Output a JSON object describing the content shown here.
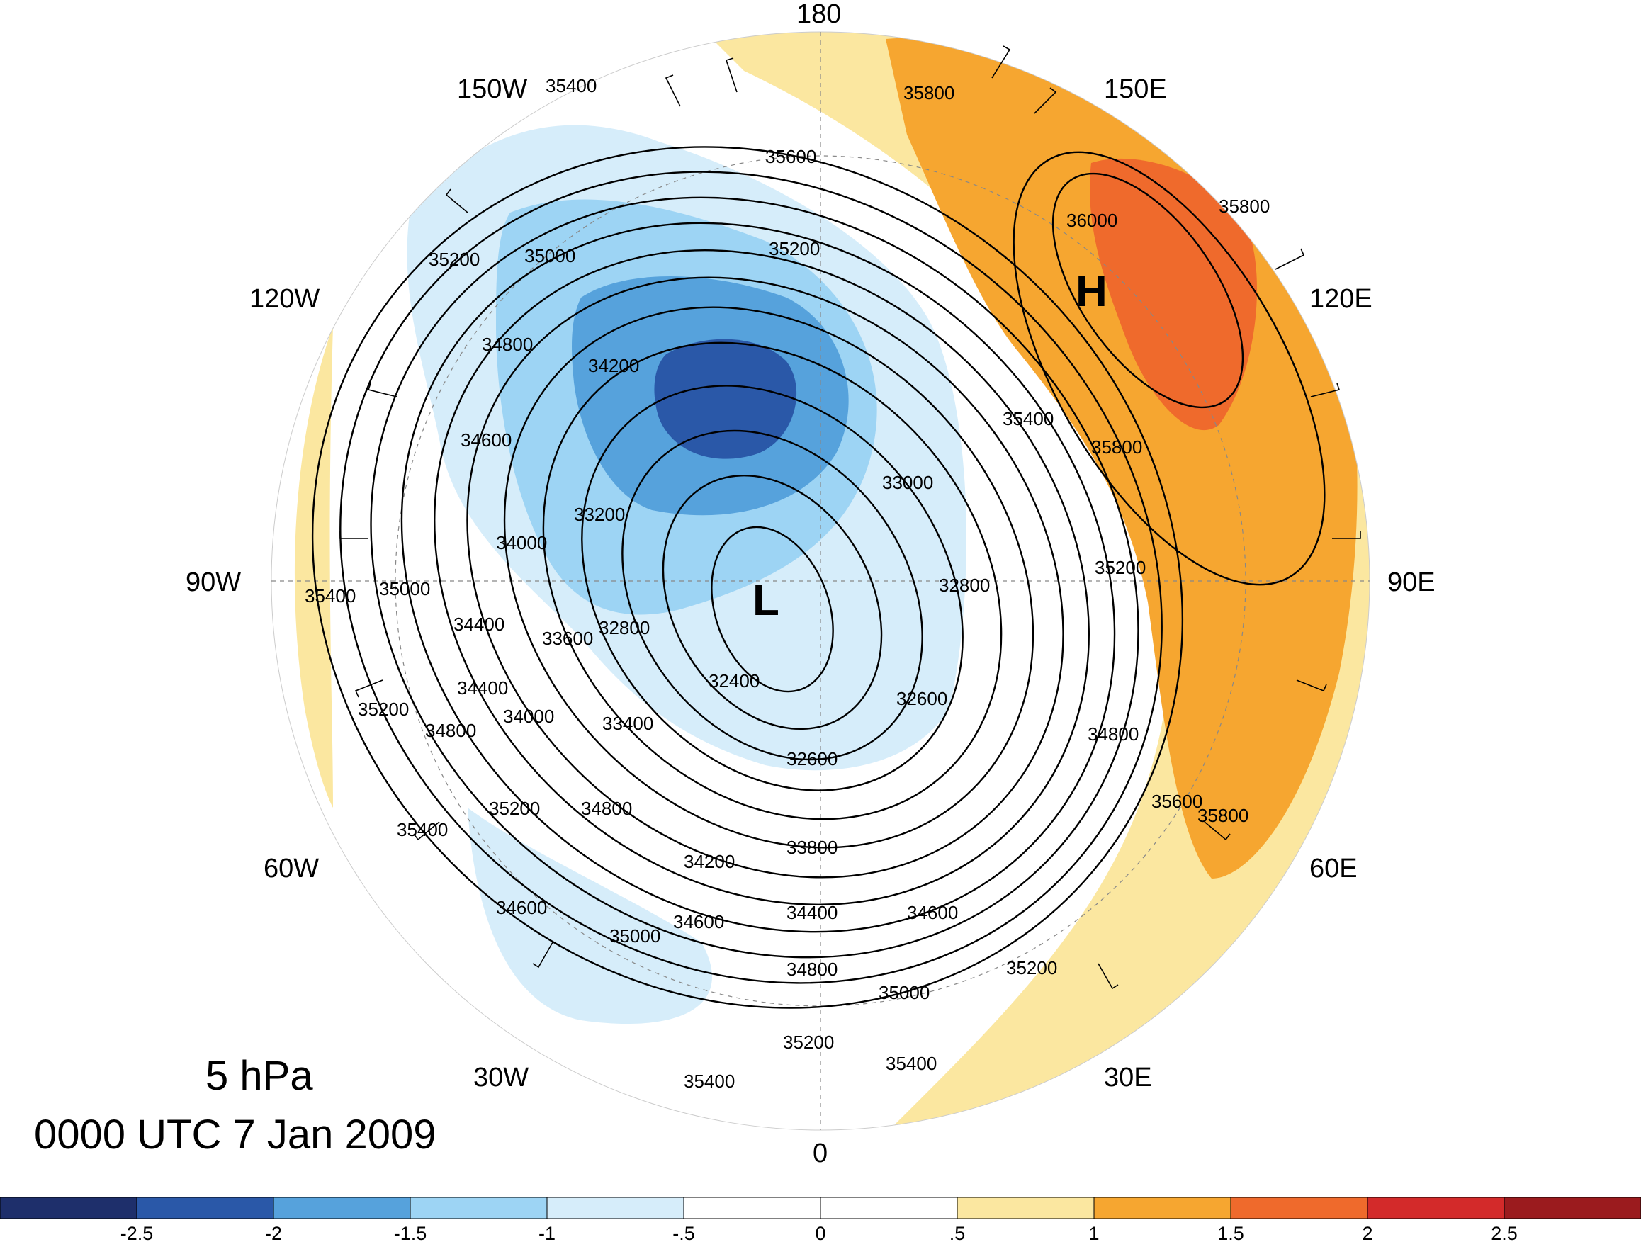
{
  "title": {
    "level": "5 hPa",
    "time": "0000 UTC 7 Jan 2009"
  },
  "longitude_labels": [
    "180",
    "150E",
    "120E",
    "90E",
    "60E",
    "30E",
    "0",
    "30W",
    "60W",
    "90W",
    "120W",
    "150W"
  ],
  "pressure_centers": [
    {
      "letter": "L",
      "name": "low-center"
    },
    {
      "letter": "H",
      "name": "high-center"
    }
  ],
  "contour_labels": [
    "35400",
    "35600",
    "35800",
    "36000",
    "35800",
    "35200",
    "35000",
    "35200",
    "34800",
    "34200",
    "34600",
    "34000",
    "33200",
    "33000",
    "32800",
    "32600",
    "32400",
    "32800",
    "33600",
    "33400",
    "32600",
    "34400",
    "35400",
    "35000",
    "34000",
    "34400",
    "35200",
    "34800",
    "35400",
    "35200",
    "34600",
    "35000",
    "34800",
    "34200",
    "33800",
    "34600",
    "34400",
    "34600",
    "34800",
    "35000",
    "35200",
    "35400",
    "35200",
    "34800",
    "35400",
    "35800",
    "35200",
    "35400",
    "35600",
    "35800"
  ],
  "colorbar": {
    "ticks": [
      "-2.5",
      "-2",
      "-1.5",
      "-1",
      "-.5",
      "0",
      ".5",
      "1",
      "1.5",
      "2",
      "2.5"
    ],
    "colors": [
      "#1e2f6b",
      "#2a58a8",
      "#56a2dc",
      "#9dd4f4",
      "#d6edfa",
      "#ffffff",
      "#ffffff",
      "#fbe7a0",
      "#f6a630",
      "#ef6a2c",
      "#d32a2a",
      "#9b1b1e"
    ]
  },
  "colors": {
    "deep_blue": "#2a58a8",
    "mid_blue": "#56a2dc",
    "light_blue": "#9dd4f4",
    "pale_blue": "#d6edfa",
    "pale_yellow": "#fbe7a0",
    "orange": "#f6a630",
    "red_orange": "#ef6a2c"
  }
}
